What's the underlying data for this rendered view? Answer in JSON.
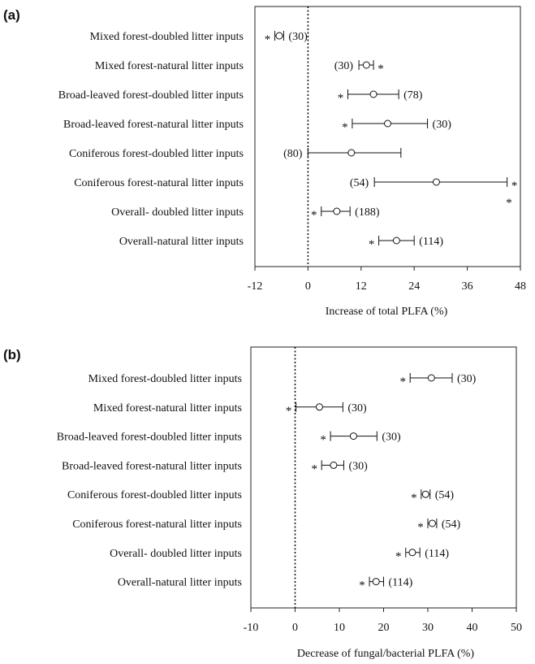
{
  "chart_data": [
    {
      "panel_label": "(a)",
      "type": "scatter",
      "subtype": "forest-plot",
      "xlabel": "Increase of total PLFA (%)",
      "xlim": [
        -12,
        48
      ],
      "xticks": [
        -12,
        0,
        12,
        24,
        36,
        48
      ],
      "reference_line": 0,
      "categories": [
        "Mixed forest-doubled litter inputs",
        "Mixed forest-natural litter inputs",
        "Broad-leaved forest-doubled litter inputs",
        "Broad-leaved forest-natural litter inputs",
        "Coniferous forest-doubled litter inputs",
        "Coniferous forest-natural litter inputs",
        "Overall- doubled litter inputs",
        "Overall-natural litter inputs"
      ],
      "values": [
        -6.5,
        13.2,
        14.8,
        18.0,
        9.8,
        29.0,
        6.5,
        20.0
      ],
      "ci_low": [
        -7.5,
        11.5,
        9.0,
        10.0,
        0.0,
        15.0,
        3.0,
        16.0
      ],
      "ci_high": [
        -5.5,
        14.8,
        20.5,
        27.0,
        21.0,
        45.0,
        9.5,
        24.0
      ],
      "sample_sizes": [
        "(30)",
        "(30)",
        "(78)",
        "(30)",
        "(80)",
        "(54)",
        "(188)",
        "(114)"
      ],
      "significant": [
        true,
        true,
        true,
        true,
        false,
        true,
        true,
        true
      ],
      "significance_marker": "*"
    },
    {
      "panel_label": "(b)",
      "type": "scatter",
      "subtype": "forest-plot",
      "xlabel": "Decrease of fungal/bacterial PLFA (%)",
      "xlim": [
        -10,
        50
      ],
      "xticks": [
        -10,
        0,
        10,
        20,
        30,
        40,
        50
      ],
      "reference_line": 0,
      "categories": [
        "Mixed forest-doubled litter inputs",
        "Mixed forest-natural litter inputs",
        "Broad-leaved forest-doubled litter inputs",
        "Broad-leaved forest-natural litter inputs",
        "Coniferous forest-doubled litter inputs",
        "Coniferous forest-natural litter inputs",
        "Overall- doubled litter inputs",
        "Overall-natural litter inputs"
      ],
      "values": [
        30.8,
        5.5,
        13.2,
        8.7,
        29.5,
        31.0,
        26.5,
        18.3
      ],
      "ci_low": [
        26.0,
        0.2,
        8.0,
        6.0,
        28.5,
        30.0,
        25.0,
        16.8
      ],
      "ci_high": [
        35.5,
        10.8,
        18.5,
        11.0,
        30.5,
        32.0,
        28.2,
        20.0
      ],
      "sample_sizes": [
        "(30)",
        "(30)",
        "(30)",
        "(30)",
        "(54)",
        "(54)",
        "(114)",
        "(114)"
      ],
      "significant": [
        true,
        true,
        true,
        true,
        true,
        true,
        true,
        true
      ],
      "significance_marker": "*"
    }
  ]
}
